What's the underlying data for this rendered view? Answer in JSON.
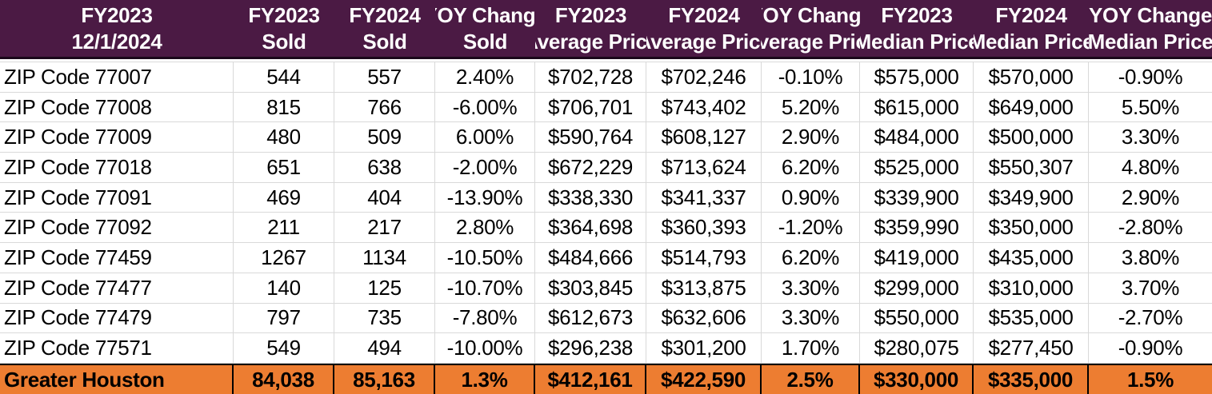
{
  "sheet": {
    "header": {
      "cols": [
        {
          "l1": "FY2023",
          "l2": "12/1/2024"
        },
        {
          "l1": "FY2023",
          "l2": "Sold"
        },
        {
          "l1": "FY2024",
          "l2": "Sold"
        },
        {
          "l1": "YOY Change",
          "l2": "Sold"
        },
        {
          "l1": "FY2023",
          "l2": "Average Price"
        },
        {
          "l1": "FY2024",
          "l2": "Average Price"
        },
        {
          "l1": "YOY Change",
          "l2": "Average Price"
        },
        {
          "l1": "FY2023",
          "l2": "Median Price"
        },
        {
          "l1": "FY2024",
          "l2": "Median Price"
        },
        {
          "l1": "YOY Change",
          "l2": "Median Price"
        }
      ]
    },
    "rows": [
      {
        "label": "ZIP Code 77007",
        "cells": [
          "544",
          "557",
          "2.40%",
          "$702,728",
          "$702,246",
          "-0.10%",
          "$575,000",
          "$570,000",
          "-0.90%"
        ]
      },
      {
        "label": "ZIP Code 77008",
        "cells": [
          "815",
          "766",
          "-6.00%",
          "$706,701",
          "$743,402",
          "5.20%",
          "$615,000",
          "$649,000",
          "5.50%"
        ]
      },
      {
        "label": "ZIP Code 77009",
        "cells": [
          "480",
          "509",
          "6.00%",
          "$590,764",
          "$608,127",
          "2.90%",
          "$484,000",
          "$500,000",
          "3.30%"
        ]
      },
      {
        "label": "ZIP Code 77018",
        "cells": [
          "651",
          "638",
          "-2.00%",
          "$672,229",
          "$713,624",
          "6.20%",
          "$525,000",
          "$550,307",
          "4.80%"
        ]
      },
      {
        "label": "ZIP Code 77091",
        "cells": [
          "469",
          "404",
          "-13.90%",
          "$338,330",
          "$341,337",
          "0.90%",
          "$339,900",
          "$349,900",
          "2.90%"
        ]
      },
      {
        "label": "ZIP Code 77092",
        "cells": [
          "211",
          "217",
          "2.80%",
          "$364,698",
          "$360,393",
          "-1.20%",
          "$359,990",
          "$350,000",
          "-2.80%"
        ]
      },
      {
        "label": "ZIP Code 77459",
        "cells": [
          "1267",
          "1134",
          "-10.50%",
          "$484,666",
          "$514,793",
          "6.20%",
          "$419,000",
          "$435,000",
          "3.80%"
        ]
      },
      {
        "label": "ZIP Code 77477",
        "cells": [
          "140",
          "125",
          "-10.70%",
          "$303,845",
          "$313,875",
          "3.30%",
          "$299,000",
          "$310,000",
          "3.70%"
        ]
      },
      {
        "label": "ZIP Code 77479",
        "cells": [
          "797",
          "735",
          "-7.80%",
          "$612,673",
          "$632,606",
          "3.30%",
          "$550,000",
          "$535,000",
          "-2.70%"
        ]
      },
      {
        "label": "ZIP Code 77571",
        "cells": [
          "549",
          "494",
          "-10.00%",
          "$296,238",
          "$301,200",
          "1.70%",
          "$280,075",
          "$277,450",
          "-0.90%"
        ]
      }
    ],
    "footer": {
      "label": "Greater Houston",
      "cells": [
        "84,038",
        "85,163",
        "1.3%",
        "$412,161",
        "$422,590",
        "2.5%",
        "$330,000",
        "$335,000",
        "1.5%"
      ]
    },
    "colors": {
      "header_bg": "#4B1A44",
      "header_text": "#FFFFFF",
      "header_border": "#1A081A",
      "summary_bg": "#ED7D31",
      "summary_border": "#000000",
      "gridline": "#D9D9D9",
      "body_text": "#000000"
    }
  }
}
